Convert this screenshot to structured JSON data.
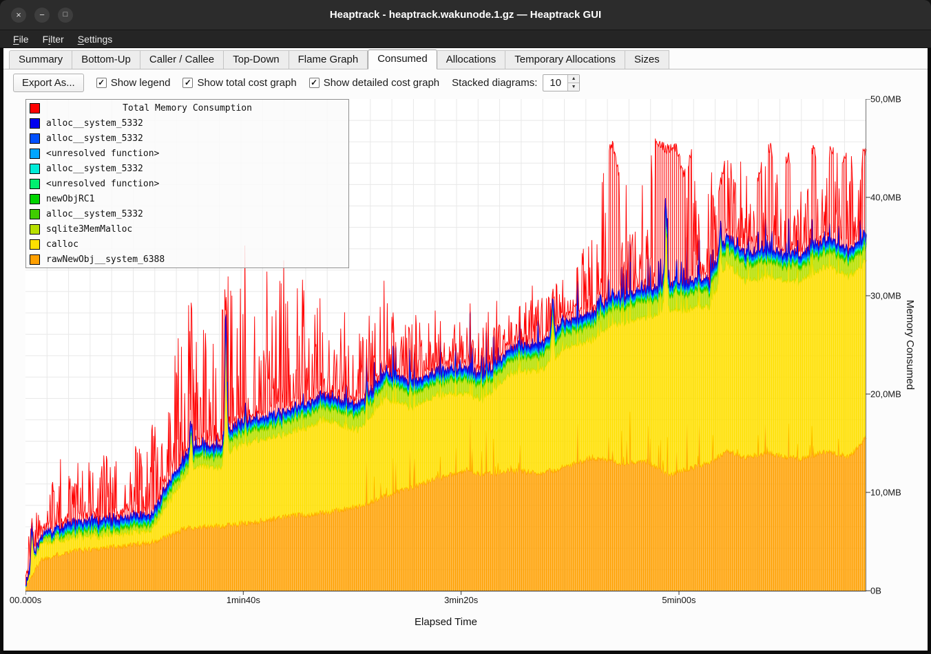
{
  "window": {
    "title": "Heaptrack - heaptrack.wakunode.1.gz — Heaptrack GUI",
    "controls": [
      {
        "id": "close",
        "glyph": "×"
      },
      {
        "id": "minimize",
        "glyph": "−"
      },
      {
        "id": "maximize",
        "glyph": "□"
      }
    ]
  },
  "menu": {
    "items": [
      {
        "label": "File",
        "mnemonic": 0
      },
      {
        "label": "Filter",
        "mnemonic": 1
      },
      {
        "label": "Settings",
        "mnemonic": 0
      }
    ]
  },
  "tabs": {
    "active_index": 5,
    "items": [
      "Summary",
      "Bottom-Up",
      "Caller / Callee",
      "Top-Down",
      "Flame Graph",
      "Consumed",
      "Allocations",
      "Temporary Allocations",
      "Sizes"
    ]
  },
  "toolbar": {
    "export_label": "Export As...",
    "check_glyph": "✓",
    "checkboxes": [
      {
        "label": "Show legend",
        "checked": true
      },
      {
        "label": "Show total cost graph",
        "checked": true
      },
      {
        "label": "Show detailed cost graph",
        "checked": true
      }
    ],
    "stacked_label": "Stacked diagrams:",
    "stacked_value": "10",
    "spin_up_glyph": "▲",
    "spin_down_glyph": "▼"
  },
  "chart_data": {
    "type": "area",
    "title": "Total Memory Consumption",
    "xlabel": "Elapsed Time",
    "ylabel": "Memory Consumed",
    "t_max": 386,
    "y_max": 50,
    "seed": 1337,
    "x_ticks": [
      {
        "t": 0,
        "label": "00.000s"
      },
      {
        "t": 100,
        "label": "1min40s"
      },
      {
        "t": 200,
        "label": "3min20s"
      },
      {
        "t": 300,
        "label": "5min00s"
      }
    ],
    "y_ticks": [
      {
        "v": 0,
        "label": "0B"
      },
      {
        "v": 10,
        "label": "10,0MB"
      },
      {
        "v": 20,
        "label": "20,0MB"
      },
      {
        "v": 30,
        "label": "30,0MB"
      },
      {
        "v": 40,
        "label": "40,0MB"
      },
      {
        "v": 50,
        "label": "50,0MB"
      }
    ],
    "legend": {
      "title": {
        "label": "Total Memory Consumption",
        "color": "#ff0000"
      },
      "entries": [
        {
          "label": "alloc__system_5332",
          "color": "#0000ee"
        },
        {
          "label": "alloc__system_5332",
          "color": "#0050ff"
        },
        {
          "label": "<unresolved function>",
          "color": "#00a6ff"
        },
        {
          "label": "alloc__system_5332",
          "color": "#00ecd8"
        },
        {
          "label": "<unresolved function>",
          "color": "#00f070"
        },
        {
          "label": "newObjRC1",
          "color": "#00d400"
        },
        {
          "label": "alloc__system_5332",
          "color": "#40cc00"
        },
        {
          "label": "sqlite3MemMalloc",
          "color": "#b8e000"
        },
        {
          "label": "calloc",
          "color": "#ffe000"
        },
        {
          "label": "rawNewObj__system_6388",
          "color": "#ffa000"
        }
      ]
    },
    "stack_series": [
      {
        "name": "rawNewObj__system_6388",
        "color": "#ffa000",
        "fill_opacity": 0.75,
        "jitter": 0.3,
        "spike_prob": 0.07,
        "spike_amp": 5.5,
        "spike_start": 150,
        "anchors": [
          [
            0,
            0.3
          ],
          [
            7,
            3.2
          ],
          [
            20,
            4.0
          ],
          [
            45,
            4.6
          ],
          [
            60,
            5.0
          ],
          [
            74,
            6.4
          ],
          [
            90,
            6.6
          ],
          [
            105,
            7.0
          ],
          [
            121,
            7.6
          ],
          [
            137,
            7.9
          ],
          [
            153,
            8.6
          ],
          [
            165,
            9.6
          ],
          [
            178,
            10.6
          ],
          [
            191,
            11.5
          ],
          [
            203,
            12.3
          ],
          [
            210,
            11.8
          ],
          [
            222,
            12.2
          ],
          [
            238,
            12.0
          ],
          [
            248,
            12.6
          ],
          [
            260,
            13.6
          ],
          [
            273,
            13.0
          ],
          [
            285,
            13.2
          ],
          [
            295,
            11.8
          ],
          [
            301,
            12.2
          ],
          [
            314,
            13.0
          ],
          [
            322,
            14.2
          ],
          [
            330,
            13.6
          ],
          [
            342,
            14.0
          ],
          [
            355,
            13.4
          ],
          [
            368,
            14.2
          ],
          [
            378,
            13.6
          ],
          [
            386,
            15.6
          ]
        ]
      },
      {
        "name": "calloc",
        "color": "#ffe000",
        "fill_opacity": 0.8,
        "jitter": 0.25,
        "spike_prob": 0.03,
        "spike_amp": 2.5,
        "spike_start": 60,
        "anchors": [
          [
            0,
            0.05
          ],
          [
            7,
            1.6
          ],
          [
            20,
            1.4
          ],
          [
            45,
            1.2
          ],
          [
            58,
            1.3
          ],
          [
            67,
            3.8
          ],
          [
            74,
            5.5
          ],
          [
            80,
            6.3
          ],
          [
            89,
            5.9
          ],
          [
            96,
            7.9
          ],
          [
            105,
            8.3
          ],
          [
            121,
            8.3
          ],
          [
            137,
            9.5
          ],
          [
            153,
            7.8
          ],
          [
            165,
            9.9
          ],
          [
            178,
            8.1
          ],
          [
            191,
            8.4
          ],
          [
            210,
            7.5
          ],
          [
            222,
            9.8
          ],
          [
            238,
            10.6
          ],
          [
            248,
            12.1
          ],
          [
            260,
            12.0
          ],
          [
            273,
            14.4
          ],
          [
            285,
            14.5
          ],
          [
            295,
            16.7
          ],
          [
            301,
            16.4
          ],
          [
            314,
            15.9
          ],
          [
            322,
            19.1
          ],
          [
            330,
            18.0
          ],
          [
            342,
            17.9
          ],
          [
            355,
            18.0
          ],
          [
            368,
            18.9
          ],
          [
            386,
            17.9
          ]
        ]
      },
      {
        "name": "sqlite3MemMalloc",
        "color": "#b8e000",
        "fill_opacity": 0.8,
        "jitter": 0.35,
        "spike_prob": 0.05,
        "spike_amp": 1.2,
        "spike_start": 60,
        "anchors": [
          [
            0,
            0.05
          ],
          [
            10,
            0.4
          ],
          [
            30,
            0.5
          ],
          [
            60,
            0.6
          ],
          [
            80,
            1.0
          ],
          [
            120,
            1.2
          ],
          [
            160,
            1.4
          ],
          [
            200,
            1.3
          ],
          [
            250,
            1.5
          ],
          [
            300,
            1.6
          ],
          [
            340,
            1.5
          ],
          [
            386,
            1.4
          ]
        ]
      },
      {
        "name": "alloc__system_5332",
        "color": "#40cc00",
        "fill_opacity": 0.85,
        "jitter": 0.05,
        "anchors": [
          [
            0,
            0.02
          ],
          [
            20,
            0.16
          ],
          [
            386,
            0.2
          ]
        ]
      },
      {
        "name": "newObjRC1",
        "color": "#00d400",
        "fill_opacity": 0.85,
        "jitter": 0.04,
        "anchors": [
          [
            0,
            0.02
          ],
          [
            20,
            0.14
          ],
          [
            386,
            0.18
          ]
        ]
      },
      {
        "name": "<unresolved function>",
        "color": "#00f070",
        "fill_opacity": 0.85,
        "jitter": 0.03,
        "anchors": [
          [
            0,
            0.01
          ],
          [
            20,
            0.1
          ],
          [
            386,
            0.12
          ]
        ]
      },
      {
        "name": "alloc__system_5332",
        "color": "#00ecd8",
        "fill_opacity": 0.85,
        "jitter": 0.03,
        "anchors": [
          [
            0,
            0.01
          ],
          [
            20,
            0.1
          ],
          [
            386,
            0.12
          ]
        ]
      },
      {
        "name": "<unresolved function>",
        "color": "#00a6ff",
        "fill_opacity": 0.85,
        "jitter": 0.03,
        "anchors": [
          [
            0,
            0.01
          ],
          [
            20,
            0.1
          ],
          [
            386,
            0.12
          ]
        ]
      },
      {
        "name": "alloc__system_5332",
        "color": "#0050ff",
        "fill_opacity": 0.9,
        "jitter": 0.05,
        "stroke_width": 1.8,
        "anchors": [
          [
            0,
            0.02
          ],
          [
            20,
            0.3
          ],
          [
            386,
            0.36
          ]
        ]
      },
      {
        "name": "alloc__system_5332",
        "color": "#0000ee",
        "fill_opacity": 0.9,
        "jitter": 0.04,
        "stroke_width": 1.2,
        "anchors": [
          [
            0,
            0.02
          ],
          [
            20,
            0.15
          ],
          [
            386,
            0.18
          ]
        ]
      }
    ],
    "stack_spikes": [
      {
        "t": 3,
        "amp": 4
      },
      {
        "t": 76,
        "amp": 3
      },
      {
        "t": 92,
        "amp": 13
      },
      {
        "t": 242,
        "amp": 4
      },
      {
        "t": 294,
        "amp": 8.5
      },
      {
        "t": 319,
        "amp": 2.5
      }
    ],
    "total_series": {
      "name": "Total Memory Consumption",
      "color": "#ff0000",
      "base_extra": 0.25,
      "jitter": 0.3,
      "spike_prob": 0.6,
      "spike_power": 1.5,
      "envelope": [
        [
          0,
          4
        ],
        [
          4,
          10
        ],
        [
          8,
          12
        ],
        [
          13,
          11
        ],
        [
          18,
          16.5
        ],
        [
          23,
          12.5
        ],
        [
          28,
          15
        ],
        [
          33,
          12
        ],
        [
          38,
          16
        ],
        [
          43,
          13
        ],
        [
          48,
          17
        ],
        [
          54,
          14
        ],
        [
          58,
          18
        ],
        [
          64,
          22
        ],
        [
          70,
          27
        ],
        [
          74,
          31
        ],
        [
          76,
          37
        ],
        [
          79,
          26
        ],
        [
          84,
          31
        ],
        [
          88,
          28
        ],
        [
          92,
          33
        ],
        [
          96,
          30
        ],
        [
          101,
          36
        ],
        [
          106,
          31
        ],
        [
          110,
          36
        ],
        [
          114,
          30
        ],
        [
          118,
          35
        ],
        [
          122,
          29
        ],
        [
          127,
          33
        ],
        [
          132,
          28
        ],
        [
          136,
          30.5
        ],
        [
          141,
          26
        ],
        [
          146,
          29
        ],
        [
          151,
          25
        ],
        [
          156,
          28
        ],
        [
          161,
          31
        ],
        [
          165,
          35.5
        ],
        [
          169,
          29
        ],
        [
          174,
          28
        ],
        [
          179,
          30.5
        ],
        [
          184,
          27
        ],
        [
          189,
          29
        ],
        [
          194,
          26
        ],
        [
          199,
          28.5
        ],
        [
          204,
          30
        ],
        [
          209,
          27
        ],
        [
          214,
          29.5
        ],
        [
          219,
          31
        ],
        [
          224,
          28
        ],
        [
          229,
          30
        ],
        [
          234,
          32
        ],
        [
          239,
          30
        ],
        [
          244,
          33
        ],
        [
          249,
          31.5
        ],
        [
          254,
          34
        ],
        [
          259,
          36
        ],
        [
          263,
          39
        ],
        [
          266,
          45.5
        ],
        [
          270,
          45.8
        ],
        [
          274,
          41
        ],
        [
          278,
          45
        ],
        [
          282,
          43
        ],
        [
          286,
          46
        ],
        [
          290,
          46.3
        ],
        [
          294,
          45.5
        ],
        [
          298,
          46
        ],
        [
          302,
          43
        ],
        [
          306,
          45.2
        ],
        [
          310,
          39
        ],
        [
          314,
          44.8
        ],
        [
          318,
          41
        ],
        [
          322,
          45
        ],
        [
          326,
          43
        ],
        [
          330,
          45.5
        ],
        [
          334,
          41
        ],
        [
          338,
          44
        ],
        [
          342,
          45.8
        ],
        [
          346,
          42
        ],
        [
          350,
          45
        ],
        [
          354,
          41.5
        ],
        [
          358,
          44
        ],
        [
          362,
          45.5
        ],
        [
          366,
          43
        ],
        [
          370,
          45.8
        ],
        [
          374,
          44
        ],
        [
          378,
          45.5
        ],
        [
          382,
          44.5
        ],
        [
          386,
          45.5
        ]
      ],
      "solid_regions": [
        [
          268,
          272.5
        ],
        [
          289,
          303
        ],
        [
          304,
          306
        ],
        [
          318,
          321
        ],
        [
          336,
          338
        ],
        [
          341,
          343
        ],
        [
          349,
          351
        ],
        [
          361,
          363
        ],
        [
          369,
          371
        ],
        [
          375,
          377
        ],
        [
          384,
          386
        ]
      ]
    }
  }
}
